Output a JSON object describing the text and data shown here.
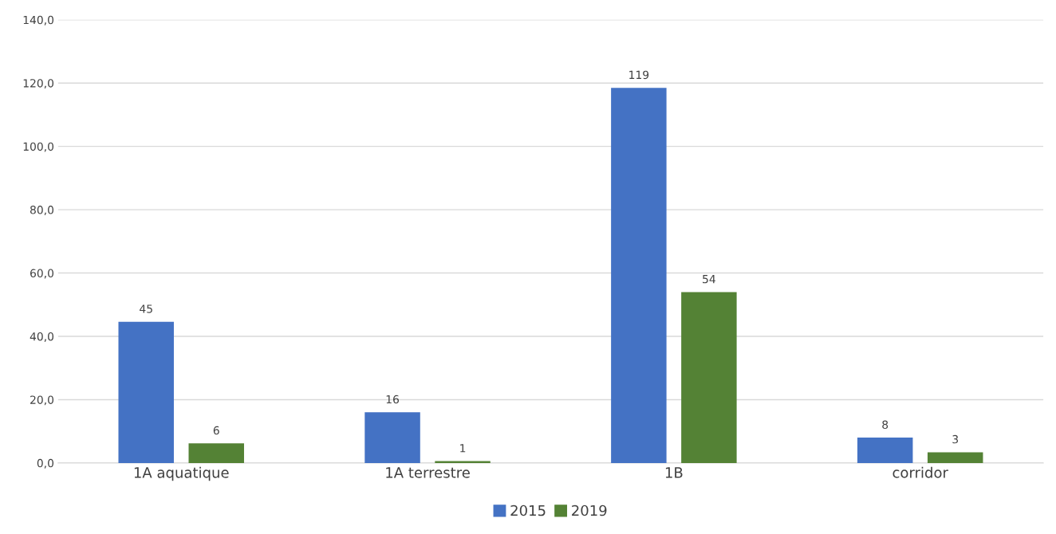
{
  "chart_data": {
    "type": "bar",
    "categories": [
      "1A aquatique",
      "1A terrestre",
      "1B",
      "corridor"
    ],
    "series": [
      {
        "name": "2015",
        "color": "#4472c4",
        "values": [
          44.6,
          16,
          118.5,
          8
        ],
        "value_labels": [
          "45",
          "16",
          "119",
          "8"
        ]
      },
      {
        "name": "2019",
        "color": "#548235",
        "values": [
          6.2,
          0.6,
          54,
          3.4
        ],
        "value_labels": [
          "6",
          "1",
          "54",
          "3"
        ]
      }
    ],
    "ylim": [
      0,
      140
    ],
    "yticks": [
      {
        "value": 0,
        "label": "0,0"
      },
      {
        "value": 20,
        "label": "20,0"
      },
      {
        "value": 40,
        "label": "40,0"
      },
      {
        "value": 60,
        "label": "60,0"
      },
      {
        "value": 80,
        "label": "80,0"
      },
      {
        "value": 100,
        "label": "100,0"
      },
      {
        "value": 120,
        "label": "120,0"
      },
      {
        "value": 140,
        "label": "140,0"
      }
    ],
    "grid": "y",
    "legend": "bottom"
  }
}
